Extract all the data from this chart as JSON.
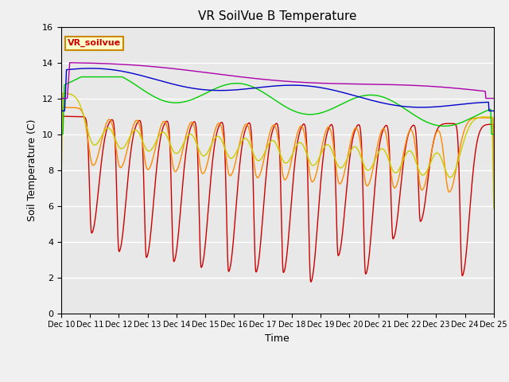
{
  "title": "VR SoilVue B Temperature",
  "xlabel": "Time",
  "ylabel": "Soil Temperature (C)",
  "ylim": [
    0,
    16
  ],
  "yticks": [
    0,
    2,
    4,
    6,
    8,
    10,
    12,
    14,
    16
  ],
  "plot_bg": "#e8e8e8",
  "fig_bg": "#f0f0f0",
  "series_colors": {
    "B-05_T": "#cc0000",
    "B-10_T": "#ff8800",
    "B-20_T": "#cccc00",
    "B-30_T": "#00cc00",
    "B-40_T": "#0000cc",
    "B-50_T": "#aa00aa"
  },
  "annotation_box": {
    "text": "VR_soilvue",
    "facecolor": "#ffffcc",
    "edgecolor": "#cc8800",
    "textcolor": "#cc0000"
  },
  "x_start": 10,
  "x_end": 25,
  "xtick_positions": [
    10,
    11,
    12,
    13,
    14,
    15,
    16,
    17,
    18,
    19,
    20,
    21,
    22,
    23,
    24,
    25
  ],
  "xtick_labels": [
    "Dec 10",
    "Dec 11",
    "Dec 12",
    "Dec 13",
    "Dec 14",
    "Dec 15",
    "Dec 16",
    "Dec 17",
    "Dec 18",
    "Dec 19",
    "Dec 20",
    "Dec 21",
    "Dec 22",
    "Dec 23",
    "Dec 24",
    "Dec 25"
  ]
}
